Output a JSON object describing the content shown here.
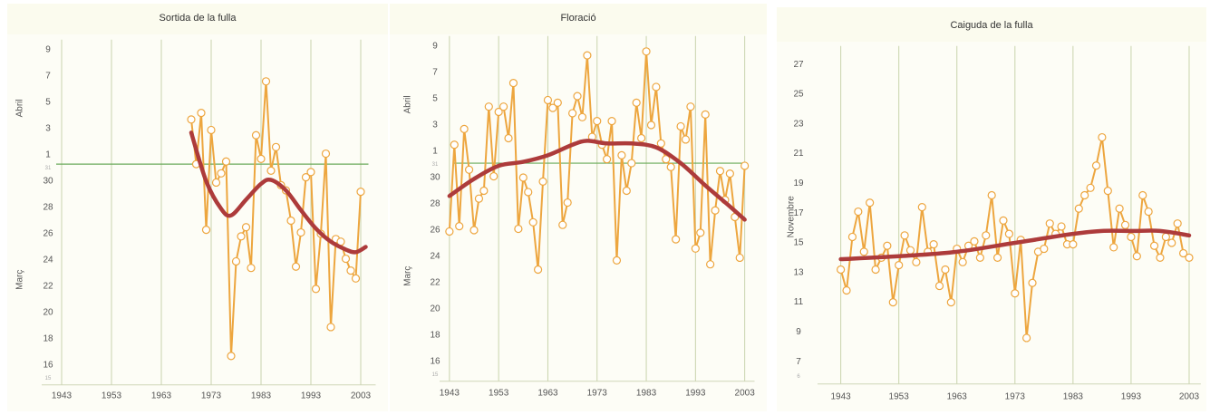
{
  "chart_data": [
    {
      "type": "line",
      "title": "Sortida de la fulla",
      "ylabel_upper": "Abril",
      "ylabel_lower": "Març",
      "xlim": [
        1939,
        2006
      ],
      "xticks": [
        1943,
        1953,
        1963,
        1973,
        1983,
        1993,
        2003
      ],
      "grid": true,
      "ylim": [
        14.5,
        40.5
      ],
      "yticks": [
        16,
        18,
        20,
        22,
        24,
        26,
        28,
        30,
        {
          "value": 32,
          "label": "1"
        },
        {
          "value": 34,
          "label": "3"
        },
        {
          "value": 36,
          "label": "5"
        },
        {
          "value": 38,
          "label": "7"
        },
        {
          "value": 40,
          "label": "9"
        }
      ],
      "minor_yticks": [
        15,
        31
      ],
      "reference_line": {
        "value": 31.3,
        "color": "#6aaa5a"
      },
      "series": [
        {
          "color": "#eda63f",
          "markers": true,
          "x": [
            1969,
            1970,
            1971,
            1972,
            1973,
            1974,
            1975,
            1976,
            1977,
            1978,
            1979,
            1980,
            1981,
            1982,
            1983,
            1984,
            1985,
            1986,
            1987,
            1988,
            1989,
            1990,
            1991,
            1992,
            1993,
            1994,
            1995,
            1996,
            1997,
            1998,
            1999,
            2000,
            2001,
            2002,
            2003
          ],
          "values": [
            34.7,
            31.3,
            35.2,
            26.3,
            33.9,
            29.9,
            30.6,
            31.5,
            16.7,
            23.9,
            25.8,
            26.5,
            23.4,
            33.5,
            31.7,
            37.6,
            30.8,
            32.6,
            29.7,
            29.3,
            27.0,
            23.5,
            26.1,
            30.3,
            30.7,
            21.8,
            26.0,
            32.1,
            18.9,
            25.6,
            25.4,
            24.1,
            23.2,
            22.6,
            29.2
          ]
        },
        {
          "color": "#ad3b3b",
          "smooth": true,
          "x": [
            1969,
            1972,
            1975,
            1977,
            1980,
            1983,
            1985,
            1988,
            1991,
            1994,
            1997,
            2000,
            2002,
            2004
          ],
          "values": [
            33.7,
            30.0,
            27.9,
            27.4,
            28.6,
            29.8,
            30.1,
            29.3,
            27.8,
            26.4,
            25.4,
            24.8,
            24.6,
            25.0
          ]
        }
      ]
    },
    {
      "type": "line",
      "title": "Floració",
      "ylabel_upper": "Abril",
      "ylabel_lower": "Març",
      "xlim": [
        1941,
        2005
      ],
      "xticks": [
        1943,
        1953,
        1963,
        1973,
        1983,
        1993,
        2003
      ],
      "grid": true,
      "ylim": [
        14.5,
        40.5
      ],
      "yticks": [
        16,
        18,
        20,
        22,
        24,
        26,
        28,
        30,
        {
          "value": 32,
          "label": "1"
        },
        {
          "value": 34,
          "label": "3"
        },
        {
          "value": 36,
          "label": "5"
        },
        {
          "value": 38,
          "label": "7"
        },
        {
          "value": 40,
          "label": "9"
        }
      ],
      "minor_yticks": [
        15,
        31
      ],
      "reference_line": {
        "value": 31.1,
        "color": "#6aaa5a"
      },
      "series": [
        {
          "color": "#eda63f",
          "markers": true,
          "x": [
            1943,
            1944,
            1945,
            1946,
            1947,
            1948,
            1949,
            1950,
            1951,
            1952,
            1953,
            1954,
            1955,
            1956,
            1957,
            1958,
            1959,
            1960,
            1961,
            1962,
            1963,
            1964,
            1965,
            1966,
            1967,
            1968,
            1969,
            1970,
            1971,
            1972,
            1973,
            1974,
            1975,
            1976,
            1977,
            1978,
            1979,
            1980,
            1981,
            1982,
            1983,
            1984,
            1985,
            1986,
            1987,
            1988,
            1989,
            1990,
            1991,
            1992,
            1993,
            1994,
            1995,
            1996,
            1997,
            1998,
            1999,
            2000,
            2001,
            2002,
            2003
          ],
          "values": [
            25.9,
            32.5,
            26.3,
            33.7,
            30.6,
            26.0,
            28.4,
            29.0,
            35.4,
            30.1,
            35.0,
            35.4,
            33.0,
            37.2,
            26.1,
            30.0,
            28.9,
            26.6,
            23.0,
            29.7,
            35.9,
            35.3,
            35.7,
            26.4,
            28.1,
            34.9,
            36.2,
            34.6,
            39.3,
            33.1,
            34.3,
            32.5,
            31.4,
            34.3,
            23.7,
            31.7,
            29.0,
            31.1,
            35.7,
            33.0,
            39.6,
            34.0,
            36.9,
            32.6,
            31.4,
            30.8,
            25.3,
            33.9,
            32.9,
            35.4,
            24.6,
            25.8,
            34.8,
            23.4,
            27.5,
            30.5,
            28.3,
            30.3,
            27.0,
            23.9,
            30.9
          ]
        },
        {
          "color": "#ad3b3b",
          "smooth": true,
          "x": [
            1943,
            1948,
            1953,
            1958,
            1963,
            1968,
            1971,
            1975,
            1980,
            1985,
            1990,
            1995,
            2000,
            2003
          ],
          "values": [
            28.6,
            29.9,
            30.9,
            31.2,
            31.7,
            32.5,
            32.8,
            32.6,
            32.6,
            32.3,
            31.1,
            29.4,
            27.8,
            26.8
          ]
        }
      ]
    },
    {
      "type": "line",
      "title": "Caiguda de la fulla",
      "ylabel": "Novembre",
      "xlim": [
        1939,
        2005
      ],
      "xticks": [
        1943,
        1953,
        1963,
        1973,
        1983,
        1993,
        2003
      ],
      "grid": true,
      "ylim": [
        5.5,
        28
      ],
      "yticks": [
        7,
        9,
        11,
        13,
        15,
        17,
        19,
        21,
        23,
        25,
        27
      ],
      "minor_yticks": [
        6
      ],
      "series": [
        {
          "color": "#eda63f",
          "markers": true,
          "x": [
            1943,
            1944,
            1945,
            1946,
            1947,
            1948,
            1949,
            1950,
            1951,
            1952,
            1953,
            1954,
            1955,
            1956,
            1957,
            1958,
            1959,
            1960,
            1961,
            1962,
            1963,
            1964,
            1965,
            1966,
            1967,
            1968,
            1969,
            1970,
            1971,
            1972,
            1973,
            1974,
            1975,
            1976,
            1977,
            1978,
            1979,
            1980,
            1981,
            1982,
            1983,
            1984,
            1985,
            1986,
            1987,
            1988,
            1989,
            1990,
            1991,
            1992,
            1993,
            1994,
            1995,
            1996,
            1997,
            1998,
            1999,
            2000,
            2001,
            2002,
            2003
          ],
          "values": [
            13.2,
            11.8,
            15.4,
            17.1,
            14.4,
            17.7,
            13.2,
            14.0,
            14.8,
            11.0,
            13.5,
            15.5,
            14.5,
            13.7,
            17.4,
            14.4,
            14.9,
            12.1,
            13.2,
            11.0,
            14.6,
            13.7,
            14.8,
            15.1,
            14.0,
            15.5,
            18.2,
            14.0,
            16.5,
            15.6,
            11.6,
            15.2,
            8.6,
            12.3,
            14.4,
            14.6,
            16.3,
            15.6,
            16.1,
            14.9,
            14.9,
            17.3,
            18.2,
            18.7,
            20.2,
            22.1,
            18.5,
            14.7,
            17.3,
            16.2,
            15.4,
            14.1,
            18.2,
            17.1,
            14.8,
            14.0,
            15.4,
            15.0,
            16.3,
            14.3,
            14.0
          ]
        },
        {
          "color": "#ad3b3b",
          "smooth": true,
          "x": [
            1943,
            1953,
            1963,
            1973,
            1983,
            1988,
            1993,
            1998,
            2003
          ],
          "values": [
            13.9,
            14.1,
            14.4,
            15.0,
            15.6,
            15.8,
            15.8,
            15.8,
            15.5
          ]
        }
      ]
    }
  ]
}
